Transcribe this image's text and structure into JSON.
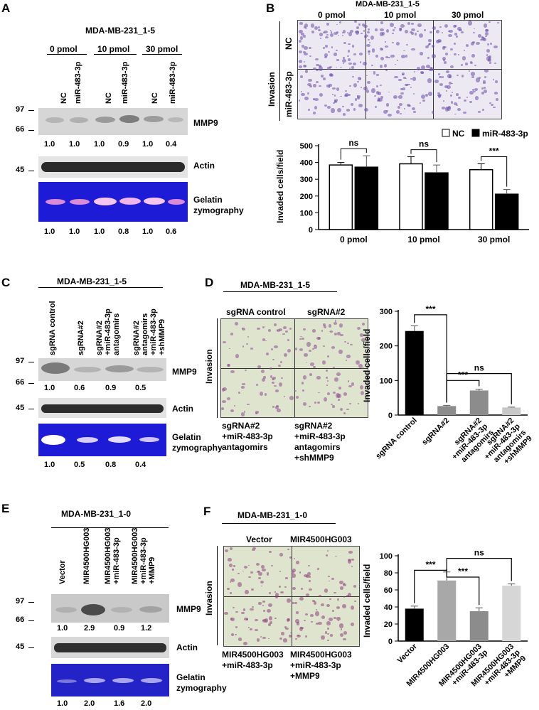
{
  "panels": {
    "A": {
      "label": "A",
      "cell_line": "MDA-MB-231_1-5",
      "groups": [
        "0 pmol",
        "10 pmol",
        "30 pmol"
      ],
      "lanes": [
        "NC",
        "miR-483-3p",
        "NC",
        "miR-483-3p",
        "NC",
        "miR-483-3p"
      ],
      "mw": [
        "97",
        "66",
        "45"
      ],
      "rows": [
        "MMP9",
        "Actin",
        "Gelatin zymography"
      ],
      "mmp9_values": [
        "1.0",
        "1.0",
        "1.0",
        "0.9",
        "1.0",
        "0.4"
      ],
      "zymo_values": [
        "1.0",
        "1.0",
        "1.0",
        "0.8",
        "1.0",
        "0.6"
      ]
    },
    "B": {
      "label": "B",
      "cell_line": "MDA-MB-231_1-5",
      "cols": [
        "0 pmol",
        "10 pmol",
        "30 pmol"
      ],
      "rows": [
        "NC",
        "miR-483-3p"
      ],
      "side": "Invasion"
    },
    "C": {
      "label": "C",
      "cell_line": "MDA-MB-231_1-5",
      "lanes": [
        "sgRNA control",
        "sgRNA#2",
        "sgRNA#2\n+miR-483-3p\nantagomirs",
        "sgRNA#2\nantagomirs\n+miR-483-3p\n+shMMP9"
      ],
      "mw": [
        "97",
        "66",
        "45"
      ],
      "rows": [
        "MMP9",
        "Actin",
        "Gelatin zymography"
      ],
      "mmp9_values": [
        "1.0",
        "0.6",
        "0.9",
        "0.5"
      ],
      "zymo_values": [
        "1.0",
        "0.5",
        "0.8",
        "0.4"
      ]
    },
    "D": {
      "label": "D",
      "cell_line": "MDA-MB-231_1-5",
      "top": [
        "sgRNA control",
        "sgRNA#2"
      ],
      "bottom_left": "sgRNA#2\n+miR-483-3p\nantagomirs",
      "bottom_right": "sgRNA#2\n+miR-483-3p\nantagomirs\n+shMMP9",
      "side": "Invasion"
    },
    "E": {
      "label": "E",
      "cell_line": "MDA-MB-231_1-0",
      "lanes": [
        "Vector",
        "MIR4500HG003",
        "MIR4500HG003\n+miR-483-3p",
        "MIR4500HG003\n+miR-483-3p\n+MMP9"
      ],
      "mw": [
        "97",
        "66",
        "45"
      ],
      "rows": [
        "MMP9",
        "Actin",
        "Gelatin zymography"
      ],
      "mmp9_values": [
        "1.0",
        "2.9",
        "0.9",
        "1.2"
      ],
      "zymo_values": [
        "1.0",
        "2.0",
        "1.6",
        "2.0"
      ]
    },
    "F": {
      "label": "F",
      "cell_line": "MDA-MB-231_1-0",
      "top": [
        "Vector",
        "MIR4500HG003"
      ],
      "bottom_left": "MIR4500HG003\n+miR-483-3p",
      "bottom_right": "MIR4500HG003\n+miR-483-3p\n+MMP9",
      "side": "Invasion"
    }
  },
  "chart_data": [
    {
      "type": "bar",
      "panel": "B",
      "ylabel": "Invaded cells/field",
      "categories": [
        "0 pmol",
        "10 pmol",
        "30 pmol"
      ],
      "series": [
        {
          "name": "NC",
          "values": [
            385,
            392,
            357
          ],
          "errors": [
            15,
            42,
            35
          ],
          "color": "#ffffff"
        },
        {
          "name": "miR-483-3p",
          "values": [
            372,
            338,
            211
          ],
          "errors": [
            68,
            47,
            28
          ],
          "color": "#000000"
        }
      ],
      "ylim": [
        0,
        500
      ],
      "yticks": [
        0,
        100,
        200,
        300,
        400,
        500
      ],
      "significance": [
        "ns",
        "ns",
        "***"
      ],
      "legend": "top-right"
    },
    {
      "type": "bar",
      "panel": "D",
      "ylabel": "Invaded cells/field",
      "categories": [
        "sgRNA control",
        "sgRNA#2",
        "sgRNA#2\n+miR-483-3p\nantagomirs",
        "sgRNA#2\n+miR-483-3p\nantagomirs\n+shMMP9"
      ],
      "values": [
        243,
        26,
        71,
        22
      ],
      "errors": [
        15,
        2,
        4,
        1
      ],
      "colors": [
        "#000000",
        "#8c8c8c",
        "#8c8c8c",
        "#c8c8c8"
      ],
      "ylim": [
        0,
        300
      ],
      "yticks": [
        0,
        100,
        200,
        300
      ],
      "significance": [
        "***",
        "***",
        "ns"
      ]
    },
    {
      "type": "bar",
      "panel": "F",
      "ylabel": "Invaded cells/field",
      "categories": [
        "Vector",
        "MIR4500HG003",
        "MIR4500HG003\n+miR-483-3p",
        "MIR4500HG003\n+miR-483-3p\n+MMP9"
      ],
      "values": [
        38,
        71,
        35,
        65
      ],
      "errors": [
        3,
        10,
        4,
        2
      ],
      "colors": [
        "#000000",
        "#a8a8a8",
        "#8c8c8c",
        "#d6d6d6"
      ],
      "ylim": [
        0,
        100
      ],
      "yticks": [
        0,
        20,
        40,
        60,
        80,
        100
      ],
      "significance": [
        "***",
        "***",
        "ns"
      ]
    }
  ]
}
